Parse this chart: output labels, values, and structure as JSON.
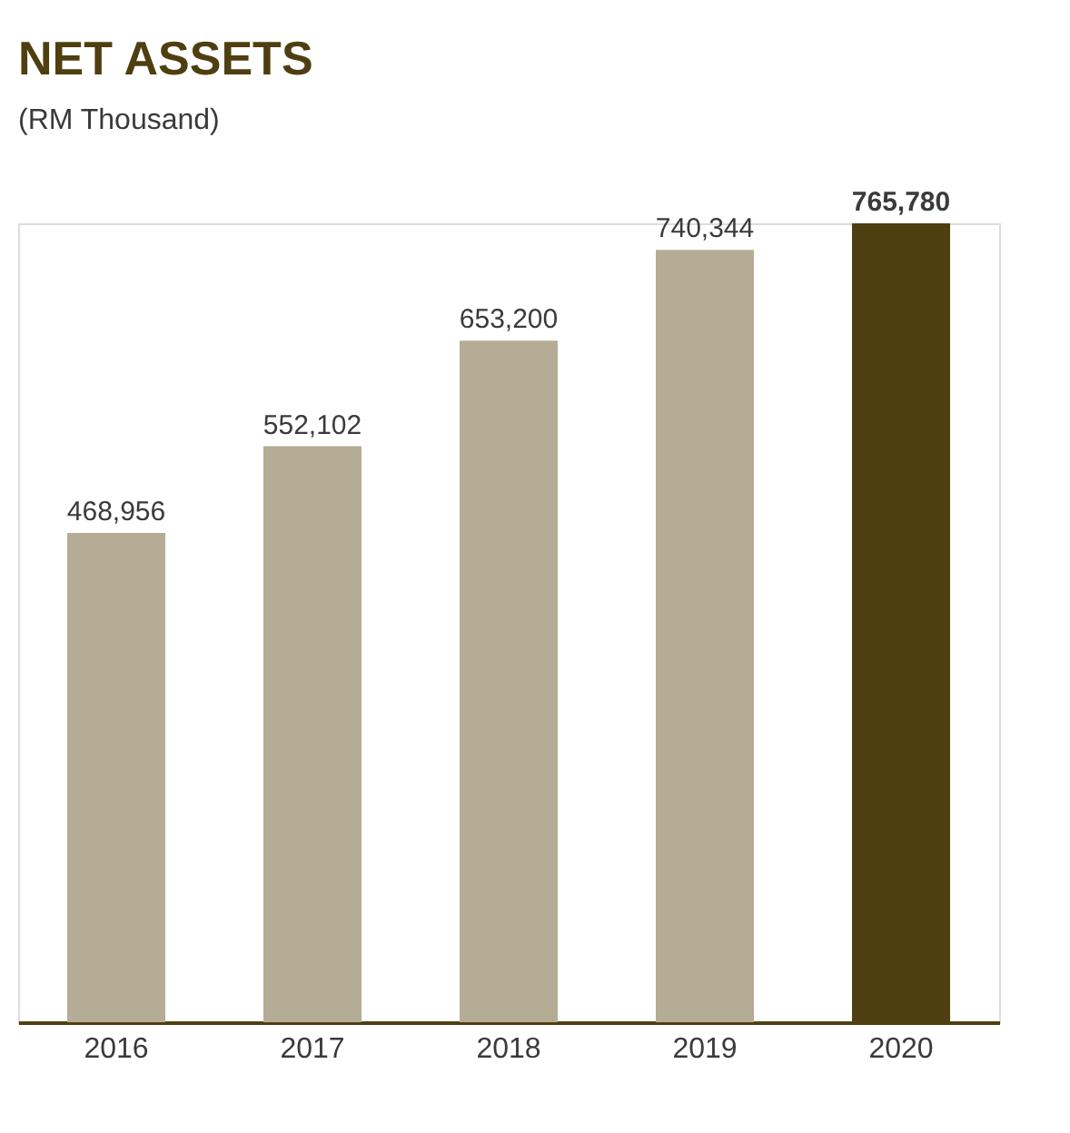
{
  "chart_data": {
    "type": "bar",
    "title": "NET ASSETS",
    "subtitle": "(RM Thousand)",
    "categories": [
      "2016",
      "2017",
      "2018",
      "2019",
      "2020"
    ],
    "values": [
      468956,
      552102,
      653200,
      740344,
      765780
    ],
    "colors": [
      "#b5ac95",
      "#b5ac95",
      "#b5ac95",
      "#b5ac95",
      "#4f3f10"
    ],
    "value_labels": [
      "468,956",
      "552,102",
      "653,200",
      "740,344",
      "765,780"
    ],
    "grid": false
  }
}
